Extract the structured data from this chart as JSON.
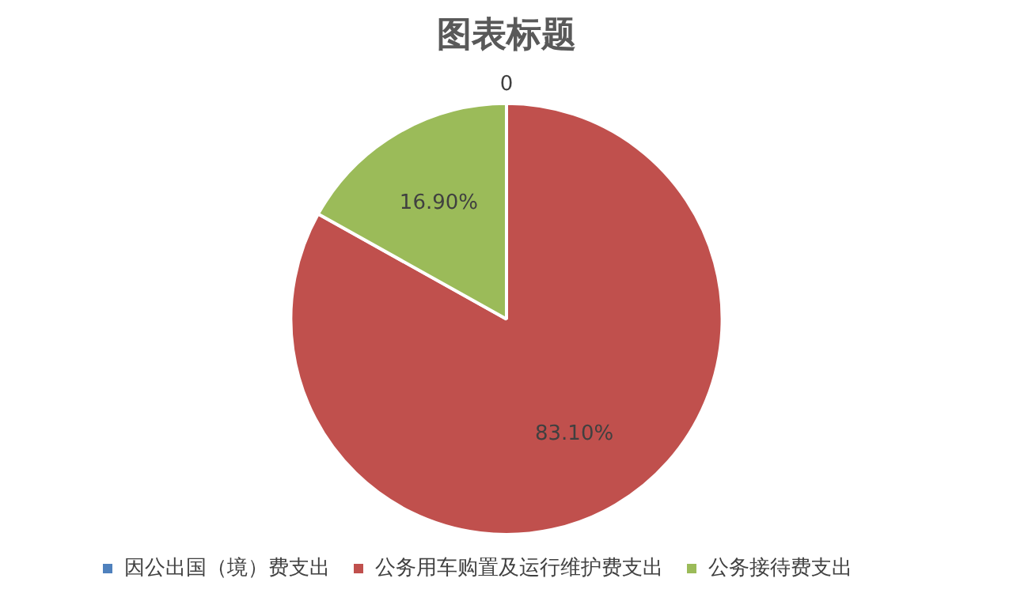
{
  "chart_data": {
    "type": "pie",
    "title": "图表标题",
    "categories": [
      "因公出国（境）费支出",
      "公务用车购置及运行维护费支出",
      "公务接待费支出"
    ],
    "values": [
      0,
      83.1,
      16.9
    ],
    "value_labels": [
      "0",
      "83.10%",
      "16.90%"
    ],
    "colors": [
      "#4f81bd",
      "#c0504d",
      "#9bbb59"
    ],
    "legend": "bottom"
  }
}
